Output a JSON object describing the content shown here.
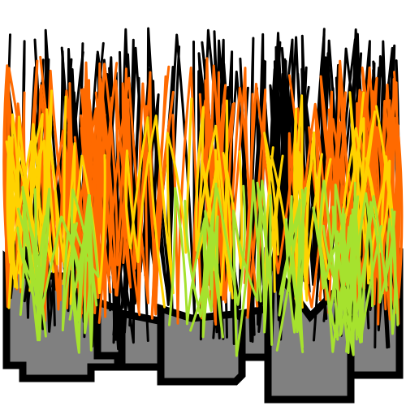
{
  "canvas": {
    "background": "#ffffff"
  },
  "blocks": {
    "fill": "#808080",
    "outline": "#000000"
  },
  "strands": {
    "palette": [
      "#000000",
      "#ff6a00",
      "#ffd200",
      "#a6e22e",
      "#ff8c1a"
    ],
    "layers": [
      {
        "color": "#000000",
        "count": 34
      },
      {
        "color": "#ff6a00",
        "count": 26
      },
      {
        "color": "#ffd200",
        "count": 14
      },
      {
        "color": "#a6e22e",
        "count": 16
      }
    ]
  }
}
